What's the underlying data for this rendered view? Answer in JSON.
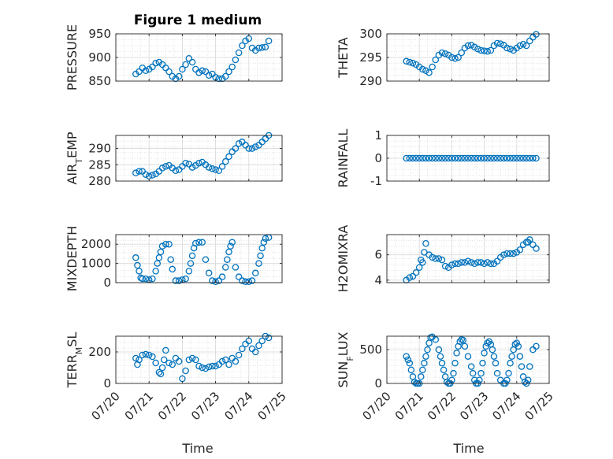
{
  "figure": {
    "title": "Figure 1 medium",
    "marker_color": "#0072BD",
    "x_ticks": [
      "07/20",
      "07/21",
      "07/22",
      "07/23",
      "07/24",
      "07/25"
    ],
    "x_label": "Time"
  },
  "chart_data": [
    {
      "type": "scatter",
      "ylabel": "PRESSURE",
      "ylim": [
        850,
        950
      ],
      "yticks": [
        850,
        900,
        950
      ],
      "x": [
        0.6,
        0.7,
        0.8,
        0.9,
        1.0,
        1.1,
        1.2,
        1.3,
        1.4,
        1.5,
        1.6,
        1.7,
        1.8,
        1.9,
        2.0,
        2.1,
        2.2,
        2.3,
        2.4,
        2.5,
        2.6,
        2.7,
        2.8,
        2.9,
        3.0,
        3.1,
        3.2,
        3.3,
        3.4,
        3.5,
        3.6,
        3.7,
        3.8,
        3.9,
        4.0,
        4.1,
        4.2,
        4.3,
        4.4,
        4.5,
        4.6
      ],
      "y": [
        865,
        870,
        878,
        872,
        875,
        880,
        888,
        890,
        885,
        878,
        870,
        860,
        855,
        860,
        875,
        885,
        898,
        890,
        875,
        868,
        872,
        870,
        862,
        865,
        858,
        855,
        855,
        860,
        870,
        880,
        895,
        910,
        925,
        935,
        940,
        920,
        915,
        920,
        921,
        922,
        935
      ]
    },
    {
      "type": "scatter",
      "ylabel": "THETA",
      "ylim": [
        290,
        300
      ],
      "yticks": [
        290,
        295,
        300
      ],
      "x": [
        0.6,
        0.7,
        0.8,
        0.9,
        1.0,
        1.1,
        1.2,
        1.3,
        1.4,
        1.5,
        1.6,
        1.7,
        1.8,
        1.9,
        2.0,
        2.1,
        2.2,
        2.3,
        2.4,
        2.5,
        2.6,
        2.7,
        2.8,
        2.9,
        3.0,
        3.1,
        3.2,
        3.3,
        3.4,
        3.5,
        3.6,
        3.7,
        3.8,
        3.9,
        4.0,
        4.1,
        4.2,
        4.3,
        4.4,
        4.5,
        4.6
      ],
      "y": [
        294.2,
        294.0,
        293.8,
        293.5,
        293.0,
        292.5,
        292.2,
        291.8,
        293.0,
        294.5,
        295.5,
        296.0,
        295.8,
        295.5,
        295.0,
        294.8,
        295.0,
        296.0,
        297.0,
        297.5,
        297.6,
        297.2,
        296.8,
        296.5,
        296.4,
        296.3,
        296.5,
        297.5,
        298.0,
        297.9,
        297.6,
        297.0,
        296.8,
        296.5,
        297.0,
        297.5,
        297.8,
        297.5,
        298.5,
        299.3,
        299.9
      ]
    },
    {
      "type": "scatter",
      "ylabel": "AIR_TEMP",
      "ylim": [
        280,
        294
      ],
      "yticks": [
        280,
        285,
        290
      ],
      "x": [
        0.6,
        0.7,
        0.8,
        0.9,
        1.0,
        1.1,
        1.2,
        1.3,
        1.4,
        1.5,
        1.6,
        1.7,
        1.8,
        1.9,
        2.0,
        2.1,
        2.2,
        2.3,
        2.4,
        2.5,
        2.6,
        2.7,
        2.8,
        2.9,
        3.0,
        3.1,
        3.2,
        3.3,
        3.4,
        3.5,
        3.6,
        3.7,
        3.8,
        3.9,
        4.0,
        4.1,
        4.2,
        4.3,
        4.4,
        4.5,
        4.6
      ],
      "y": [
        282.5,
        283.0,
        283.0,
        282.0,
        281.5,
        281.8,
        282.2,
        283.0,
        284.0,
        284.5,
        284.8,
        284.0,
        283.2,
        283.5,
        284.5,
        285.5,
        285.2,
        284.2,
        284.8,
        285.5,
        285.8,
        285.0,
        284.2,
        283.8,
        283.5,
        283.2,
        284.5,
        286.0,
        287.5,
        289.0,
        290.0,
        291.5,
        292.0,
        291.0,
        290.0,
        290.0,
        290.5,
        291.0,
        292.0,
        293.0,
        294.0
      ]
    },
    {
      "type": "scatter",
      "ylabel": "RAINFALL",
      "ylim": [
        -1,
        1
      ],
      "yticks": [
        -1,
        0,
        1
      ],
      "x": [
        0.6,
        0.7,
        0.8,
        0.9,
        1.0,
        1.1,
        1.2,
        1.3,
        1.4,
        1.5,
        1.6,
        1.7,
        1.8,
        1.9,
        2.0,
        2.1,
        2.2,
        2.3,
        2.4,
        2.5,
        2.6,
        2.7,
        2.8,
        2.9,
        3.0,
        3.1,
        3.2,
        3.3,
        3.4,
        3.5,
        3.6,
        3.7,
        3.8,
        3.9,
        4.0,
        4.1,
        4.2,
        4.3,
        4.4,
        4.5,
        4.6
      ],
      "y": [
        0,
        0,
        0,
        0,
        0,
        0,
        0,
        0,
        0,
        0,
        0,
        0,
        0,
        0,
        0,
        0,
        0,
        0,
        0,
        0,
        0,
        0,
        0,
        0,
        0,
        0,
        0,
        0,
        0,
        0,
        0,
        0,
        0,
        0,
        0,
        0,
        0,
        0,
        0,
        0,
        0
      ]
    },
    {
      "type": "scatter",
      "ylabel": "MIXDEPTH",
      "ylim": [
        0,
        2500
      ],
      "yticks": [
        0,
        1000,
        2000
      ],
      "x": [
        0.6,
        0.65,
        0.7,
        0.75,
        0.8,
        0.9,
        1.0,
        1.1,
        1.2,
        1.25,
        1.3,
        1.35,
        1.4,
        1.5,
        1.6,
        1.65,
        1.7,
        1.8,
        1.9,
        2.0,
        2.1,
        2.2,
        2.25,
        2.3,
        2.35,
        2.4,
        2.5,
        2.6,
        2.7,
        2.8,
        2.9,
        3.0,
        3.1,
        3.2,
        3.3,
        3.35,
        3.4,
        3.45,
        3.5,
        3.6,
        3.7,
        3.8,
        3.9,
        4.0,
        4.1,
        4.2,
        4.3,
        4.35,
        4.4,
        4.45,
        4.5,
        4.6
      ],
      "y": [
        1300,
        900,
        600,
        250,
        200,
        200,
        150,
        200,
        600,
        1000,
        1300,
        1600,
        1900,
        2000,
        2000,
        1200,
        700,
        100,
        100,
        150,
        200,
        600,
        1000,
        1400,
        1800,
        2050,
        2100,
        2100,
        1200,
        500,
        100,
        50,
        100,
        300,
        800,
        1200,
        1600,
        1900,
        2100,
        800,
        300,
        100,
        50,
        50,
        100,
        500,
        1000,
        1400,
        1800,
        2100,
        2300,
        2350
      ]
    },
    {
      "type": "scatter",
      "ylabel": "H2OMIXRA",
      "ylim": [
        3.8,
        7.6
      ],
      "yticks": [
        4,
        6
      ],
      "x": [
        0.6,
        0.7,
        0.8,
        0.9,
        1.0,
        1.05,
        1.1,
        1.15,
        1.2,
        1.3,
        1.4,
        1.5,
        1.6,
        1.7,
        1.8,
        1.9,
        2.0,
        2.1,
        2.2,
        2.3,
        2.4,
        2.5,
        2.6,
        2.7,
        2.8,
        2.9,
        3.0,
        3.1,
        3.2,
        3.3,
        3.4,
        3.5,
        3.6,
        3.7,
        3.8,
        3.9,
        4.0,
        4.1,
        4.2,
        4.3,
        4.35,
        4.4,
        4.5,
        4.6
      ],
      "y": [
        4.0,
        4.2,
        4.3,
        4.6,
        5.0,
        5.6,
        5.4,
        6.2,
        6.9,
        6.0,
        5.8,
        5.7,
        5.7,
        5.6,
        5.1,
        5.0,
        5.2,
        5.3,
        5.3,
        5.4,
        5.4,
        5.5,
        5.4,
        5.3,
        5.4,
        5.4,
        5.3,
        5.4,
        5.3,
        5.3,
        5.5,
        5.8,
        6.0,
        6.1,
        6.1,
        6.1,
        6.2,
        6.4,
        6.8,
        7.0,
        7.0,
        7.2,
        6.8,
        6.5
      ]
    },
    {
      "type": "scatter",
      "ylabel": "TERR_MSL",
      "ylim": [
        0,
        300
      ],
      "yticks": [
        0,
        200
      ],
      "x": [
        0.6,
        0.65,
        0.7,
        0.8,
        0.9,
        1.0,
        1.1,
        1.2,
        1.3,
        1.35,
        1.4,
        1.45,
        1.5,
        1.6,
        1.7,
        1.8,
        1.9,
        2.0,
        2.1,
        2.2,
        2.3,
        2.4,
        2.5,
        2.6,
        2.7,
        2.8,
        2.9,
        3.0,
        3.1,
        3.2,
        3.3,
        3.4,
        3.5,
        3.6,
        3.7,
        3.8,
        3.9,
        4.0,
        4.1,
        4.2,
        4.3,
        4.4,
        4.5,
        4.6
      ],
      "y": [
        160,
        120,
        150,
        180,
        185,
        180,
        170,
        130,
        70,
        60,
        100,
        150,
        210,
        130,
        120,
        160,
        140,
        30,
        80,
        150,
        160,
        150,
        110,
        100,
        95,
        105,
        110,
        110,
        120,
        140,
        150,
        120,
        160,
        140,
        180,
        220,
        250,
        270,
        220,
        200,
        240,
        270,
        300,
        290
      ]
    },
    {
      "type": "scatter",
      "ylabel": "SUN_FLUX",
      "ylim": [
        0,
        700
      ],
      "yticks": [
        0,
        500
      ],
      "x": [
        0.6,
        0.65,
        0.7,
        0.75,
        0.8,
        0.85,
        0.9,
        0.95,
        1.0,
        1.05,
        1.1,
        1.15,
        1.2,
        1.25,
        1.3,
        1.35,
        1.4,
        1.5,
        1.6,
        1.65,
        1.7,
        1.75,
        1.8,
        1.85,
        1.9,
        1.95,
        2.0,
        2.05,
        2.1,
        2.15,
        2.2,
        2.25,
        2.3,
        2.35,
        2.4,
        2.5,
        2.6,
        2.65,
        2.7,
        2.75,
        2.8,
        2.85,
        2.9,
        2.95,
        3.0,
        3.05,
        3.1,
        3.15,
        3.2,
        3.25,
        3.3,
        3.35,
        3.4,
        3.5,
        3.6,
        3.65,
        3.7,
        3.75,
        3.8,
        3.85,
        3.9,
        3.95,
        4.0,
        4.05,
        4.1,
        4.15,
        4.2,
        4.25,
        4.3,
        4.35,
        4.4,
        4.5,
        4.6
      ],
      "y": [
        400,
        350,
        300,
        200,
        100,
        20,
        0,
        0,
        0,
        100,
        200,
        300,
        400,
        500,
        600,
        680,
        690,
        650,
        500,
        400,
        300,
        200,
        100,
        20,
        0,
        0,
        50,
        150,
        300,
        450,
        550,
        620,
        650,
        640,
        550,
        400,
        250,
        150,
        50,
        0,
        0,
        50,
        150,
        300,
        450,
        550,
        600,
        620,
        580,
        500,
        400,
        300,
        150,
        50,
        0,
        0,
        50,
        150,
        300,
        400,
        500,
        580,
        600,
        550,
        400,
        250,
        100,
        20,
        0,
        50,
        250,
        500,
        550
      ]
    }
  ]
}
